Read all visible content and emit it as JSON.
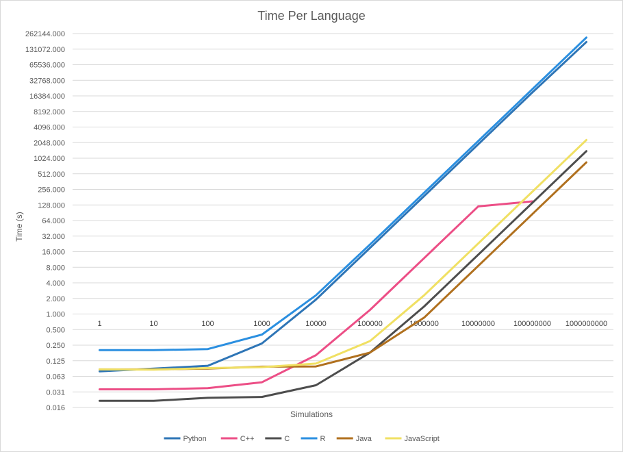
{
  "chart_data": {
    "type": "line",
    "title": "Time Per Language",
    "xlabel": "Simulations",
    "ylabel": "Time (s)",
    "y_scale": "log2",
    "grid": true,
    "legend_position": "bottom",
    "categories": [
      "1",
      "10",
      "100",
      "1000",
      "10000",
      "100000",
      "1000000",
      "10000000",
      "100000000",
      "1000000000"
    ],
    "y_ticks": [
      "0.016",
      "0.031",
      "0.063",
      "0.125",
      "0.250",
      "0.500",
      "1.000",
      "2.000",
      "4.000",
      "8.000",
      "16.000",
      "32.000",
      "64.000",
      "128.000",
      "256.000",
      "512.000",
      "1024.000",
      "2048.000",
      "4096.000",
      "8192.000",
      "16384.000",
      "32768.000",
      "65536.000",
      "131072.000",
      "262144.000"
    ],
    "y_tick_values": [
      0.015625,
      0.03125,
      0.0625,
      0.125,
      0.25,
      0.5,
      1,
      2,
      4,
      8,
      16,
      32,
      64,
      128,
      256,
      512,
      1024,
      2048,
      4096,
      8192,
      16384,
      32768,
      65536,
      131072,
      262144
    ],
    "ylim": [
      0.015625,
      262144
    ],
    "series": [
      {
        "name": "Python",
        "color": "#2E75B6",
        "values": [
          0.078,
          0.088,
          0.1,
          0.27,
          1.9,
          19,
          190,
          1900,
          19000,
          180000
        ]
      },
      {
        "name": "C++",
        "color": "#EC4E86",
        "values": [
          0.035,
          0.035,
          0.037,
          0.048,
          0.16,
          1.2,
          12,
          120,
          150,
          null
        ]
      },
      {
        "name": "C",
        "color": "#4D4D4D",
        "values": [
          0.021,
          0.021,
          0.024,
          0.025,
          0.042,
          0.18,
          1.4,
          14,
          140,
          1400
        ]
      },
      {
        "name": "R",
        "color": "#2B8FE0",
        "values": [
          0.2,
          0.2,
          0.21,
          0.4,
          2.3,
          22,
          220,
          2200,
          22000,
          220000
        ]
      },
      {
        "name": "Java",
        "color": "#B0701E",
        "values": [
          0.085,
          0.085,
          0.088,
          0.096,
          0.097,
          0.18,
          0.85,
          8.5,
          85,
          850
        ]
      },
      {
        "name": "JavaScript",
        "color": "#F0E063",
        "values": [
          0.085,
          0.084,
          0.09,
          0.094,
          0.11,
          0.3,
          2.3,
          23,
          230,
          2300
        ]
      }
    ]
  }
}
